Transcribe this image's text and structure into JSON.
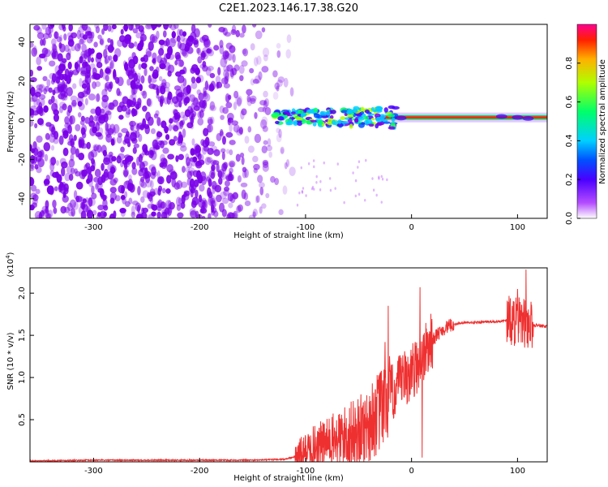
{
  "title": "C2E1.2023.146.17.38.G20",
  "colors": {
    "snr_line": "#ee3030",
    "spectrogram_scatter": "#7a00e8",
    "colorbar_stops": [
      "#ffffff",
      "#b44cff",
      "#4a00ff",
      "#0050ff",
      "#00d0ff",
      "#00ff6a",
      "#b0ff00",
      "#ffb000",
      "#ff2000",
      "#ff0090"
    ]
  },
  "chart_data": [
    {
      "type": "heatmap",
      "title": "C2E1.2023.146.17.38.G20",
      "xlabel": "Height of straight line (km)",
      "ylabel": "Frequency (Hz)",
      "xlim": [
        -360,
        128
      ],
      "ylim": [
        -50,
        49
      ],
      "x_ticks": [
        "-300",
        "-200",
        "-100",
        "0",
        "100"
      ],
      "y_ticks": [
        "-40",
        "-20",
        "0",
        "20",
        "40"
      ],
      "colorbar": {
        "label": "Normalized spectral amplitude",
        "range": [
          0.0,
          1.0
        ],
        "ticks": [
          "0.0",
          "0.2",
          "0.4",
          "0.6",
          "0.8"
        ]
      },
      "features": {
        "noise_region_x": [
          -360,
          -110
        ],
        "signal_frequency_hz": 1.5,
        "strong_signal_x": [
          -25,
          128
        ],
        "transition_x": [
          -130,
          -25
        ]
      }
    },
    {
      "type": "line",
      "xlabel": "Height of straight line (km)",
      "ylabel": "SNR (10 * v/v)",
      "y_multiplier": "(x10^4)",
      "y_multiplier_base": "(x10",
      "y_multiplier_exp": "4",
      "xlim": [
        -360,
        128
      ],
      "ylim": [
        0.0,
        2.3
      ],
      "x_ticks": [
        "-300",
        "-200",
        "-100",
        "0",
        "100"
      ],
      "y_ticks": [
        "0.5",
        "1.0",
        "1.5",
        "2.0"
      ],
      "series": [
        {
          "x": [
            -360,
            -300,
            -250,
            -200,
            -150,
            -120,
            -110,
            -100,
            -90,
            -80,
            -70,
            -60,
            -50,
            -40,
            -30,
            -25,
            -20,
            -15,
            -10,
            -5,
            0,
            5,
            10,
            15,
            20,
            25,
            30,
            35,
            40,
            50,
            60,
            70,
            80,
            85,
            90,
            95,
            100,
            105,
            110,
            115,
            120,
            128
          ],
          "y": [
            0.01,
            0.02,
            0.02,
            0.02,
            0.02,
            0.03,
            0.06,
            0.12,
            0.2,
            0.22,
            0.27,
            0.32,
            0.35,
            0.45,
            0.6,
            0.7,
            0.8,
            0.85,
            0.95,
            1.0,
            1.05,
            1.15,
            1.25,
            1.35,
            1.45,
            1.52,
            1.57,
            1.61,
            1.63,
            1.65,
            1.65,
            1.66,
            1.66,
            1.67,
            1.68,
            1.67,
            1.66,
            1.65,
            1.63,
            1.62,
            1.62,
            1.6
          ],
          "spikes": [
            {
              "x": -25,
              "y": 1.42
            },
            {
              "x": -22,
              "y": 1.85
            },
            {
              "x": 8,
              "y": 2.07
            },
            {
              "x": 10,
              "y": 0.05
            },
            {
              "x": 100,
              "y": 2.05
            },
            {
              "x": 108,
              "y": 2.28
            }
          ]
        }
      ]
    }
  ]
}
